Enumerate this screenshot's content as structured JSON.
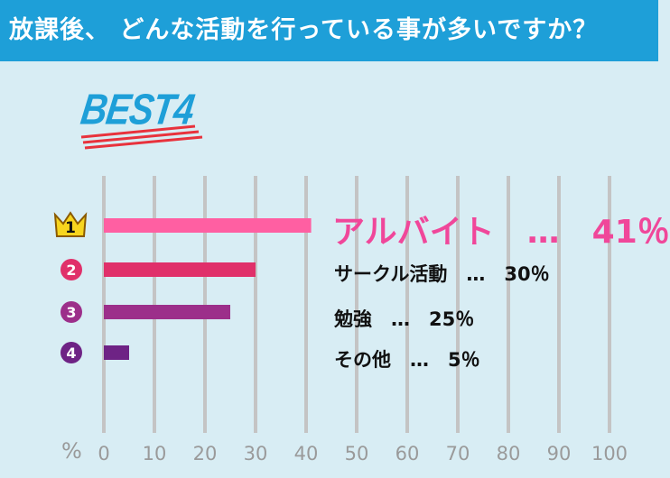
{
  "header": {
    "title": "放課後、 どんな活動を行っている事が多いですか？"
  },
  "badge": {
    "text": "BEST4"
  },
  "chart_data": {
    "type": "bar",
    "orientation": "horizontal",
    "categories": [
      "アルバイト",
      "サークル活動",
      "勉強",
      "その他"
    ],
    "values": [
      41,
      30,
      25,
      5
    ],
    "ranks": [
      "1",
      "2",
      "3",
      "4"
    ],
    "labels": [
      "アルバイト　…　41％",
      "サークル活動　…　30％",
      "勉強　…　25％",
      "その他　…　5％"
    ],
    "bar_colors": [
      "#ff5fa2",
      "#e0306a",
      "#9c2f8a",
      "#6e2385"
    ],
    "rank_colors": [
      "#f7d51e",
      "#e0306a",
      "#9c2f8a",
      "#6e2385"
    ],
    "xlim": [
      0,
      100
    ],
    "xticks": [
      "0",
      "10",
      "20",
      "30",
      "40",
      "50",
      "60",
      "70",
      "80",
      "90",
      "100"
    ],
    "xunit": "%",
    "grid": true
  }
}
